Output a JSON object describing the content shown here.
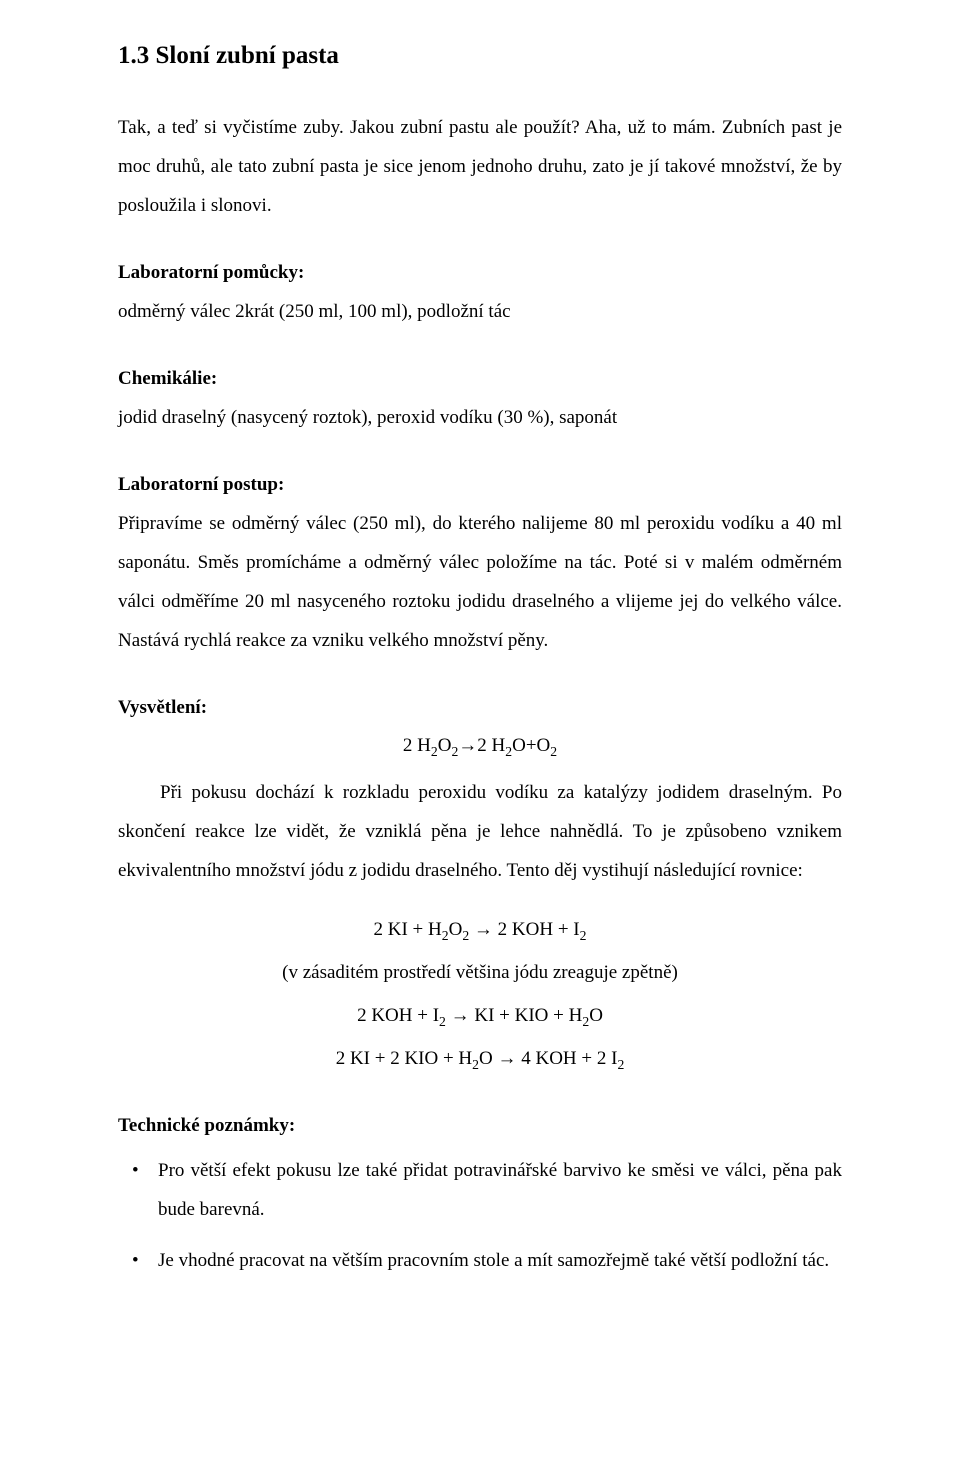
{
  "title": "1.3 Sloní zubní pasta",
  "intro": "Tak, a teď si vyčistíme zuby. Jakou zubní pastu ale použít? Aha, už to mám. Zubních past je moc druhů, ale tato zubní pasta je sice jenom jednoho druhu, zato je jí takové množství, že by posloužila i slonovi.",
  "sections": {
    "equipment": {
      "head": "Laboratorní pomůcky:",
      "body": "odměrný válec 2krát (250 ml, 100 ml), podložní tác"
    },
    "chemicals": {
      "head": "Chemikálie:",
      "body": "jodid draselný (nasycený roztok), peroxid vodíku (30 %), saponát"
    },
    "procedure": {
      "head": "Laboratorní postup:",
      "body": "Připravíme se odměrný válec (250 ml), do kterého nalijeme 80 ml peroxidu vodíku a 40 ml saponátu. Směs promícháme a odměrný válec položíme na tác. Poté si v malém odměrném válci odměříme 20 ml nasyceného roztoku jodidu draselného a vlijeme jej do velkého válce. Nastává rychlá reakce za vzniku velkého množství pěny."
    },
    "explanation": {
      "head": "Vysvětlení:",
      "eq_main_html": "2 H<sub>2</sub>O<sub>2</sub>→2 H<sub>2</sub>O+O<sub>2</sub>",
      "body": "Při pokusu dochází k rozkladu peroxidu vodíku za katalýzy jodidem draselným. Po skončení reakce lze vidět, že vzniklá pěna je lehce nahnědlá. To je způsobeno vznikem ekvivalentního množství jódu z jodidu draselného. Tento děj vystihují následující rovnice:",
      "eq1_html": "2 KI + H<sub>2</sub>O<sub>2</sub> → 2 KOH + I<sub>2</sub>",
      "eq_note": "(v zásaditém prostředí většina jódu zreaguje zpětně)",
      "eq2_html": "2 KOH + I<sub>2</sub> → KI + KIO + H<sub>2</sub>O",
      "eq3_html": "2 KI + 2 KIO + H<sub>2</sub>O → 4 KOH + 2 I<sub>2</sub>"
    },
    "notes": {
      "head": "Technické poznámky:",
      "items": [
        "Pro větší efekt pokusu lze také přidat potravinářské barvivo ke směsi ve válci, pěna pak bude barevná.",
        "Je vhodné pracovat na větším pracovním stole a mít samozřejmě také větší podložní tác."
      ]
    }
  }
}
